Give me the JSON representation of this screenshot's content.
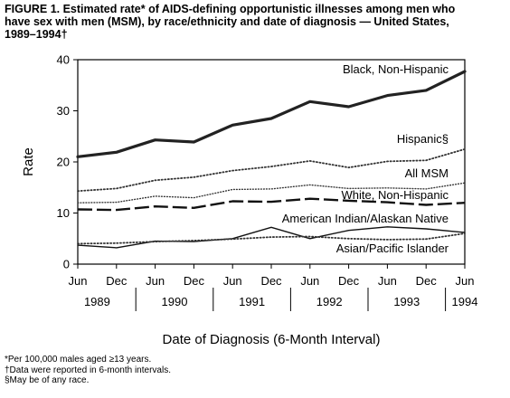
{
  "figure": {
    "title_lines": [
      "FIGURE 1. Estimated rate* of AIDS-defining opportunistic illnesses among men who",
      "have sex with men (MSM), by race/ethnicity and date of diagnosis — United States,",
      "1989–1994†"
    ],
    "footnotes": [
      "*Per 100,000 males aged ≥13 years.",
      "†Data were reported in 6-month intervals.",
      "§May be of any race."
    ]
  },
  "chart_data": {
    "type": "line",
    "title": "FIGURE 1. Estimated rate* of AIDS-defining opportunistic illnesses among men who have sex with men (MSM), by race/ethnicity and date of diagnosis — United States, 1989–1994†",
    "xlabel": "Date of Diagnosis (6-Month Interval)",
    "ylabel": "Rate",
    "ylim": [
      0,
      40
    ],
    "yticks": [
      0,
      10,
      20,
      30,
      40
    ],
    "x_tick_labels": [
      "Jun",
      "Dec",
      "Jun",
      "Dec",
      "Jun",
      "Dec",
      "Jun",
      "Dec",
      "Jun",
      "Dec",
      "Jun"
    ],
    "x_years": [
      "1989",
      "1990",
      "1991",
      "1992",
      "1993",
      "1994"
    ],
    "x": [
      "Jun 1989",
      "Dec 1989",
      "Jun 1990",
      "Dec 1990",
      "Jun 1991",
      "Dec 1991",
      "Jun 1992",
      "Dec 1992",
      "Jun 1993",
      "Dec 1993",
      "Jun 1994"
    ],
    "grid": false,
    "legend": "inline labels",
    "series": [
      {
        "name": "Black, Non-Hispanic",
        "label": "Black, Non-Hispanic",
        "style": "thick",
        "color": "#222222",
        "values": [
          21.0,
          21.9,
          24.3,
          23.9,
          27.2,
          28.5,
          31.8,
          30.8,
          33.0,
          34.0,
          37.7
        ]
      },
      {
        "name": "Hispanic",
        "label": "Hispanic§",
        "style": "dotted",
        "color": "#333333",
        "values": [
          14.3,
          14.8,
          16.4,
          17.0,
          18.3,
          19.1,
          20.2,
          18.9,
          20.1,
          20.3,
          22.5
        ]
      },
      {
        "name": "All MSM",
        "label": "All MSM",
        "style": "fine-dotted",
        "color": "#333333",
        "values": [
          12.0,
          12.1,
          13.3,
          13.0,
          14.6,
          14.7,
          15.5,
          14.8,
          14.9,
          14.7,
          15.9
        ]
      },
      {
        "name": "White, Non-Hispanic",
        "label": "White, Non-Hispanic",
        "style": "dashed",
        "color": "#111111",
        "values": [
          10.7,
          10.6,
          11.3,
          11.0,
          12.3,
          12.2,
          12.8,
          12.4,
          12.1,
          11.6,
          12.0
        ]
      },
      {
        "name": "American Indian/Alaskan Native",
        "label": "American Indian/Alaskan Native",
        "style": "solid",
        "color": "#111111",
        "values": [
          3.7,
          3.2,
          4.5,
          4.4,
          5.0,
          7.2,
          5.0,
          6.6,
          7.3,
          6.9,
          6.2
        ]
      },
      {
        "name": "Asian/Pacific Islander",
        "label": "Asian/Pacific Islander",
        "style": "dotted",
        "color": "#333333",
        "values": [
          4.0,
          4.1,
          4.4,
          4.6,
          4.9,
          5.3,
          5.4,
          5.0,
          4.8,
          4.9,
          6.0
        ]
      }
    ]
  }
}
